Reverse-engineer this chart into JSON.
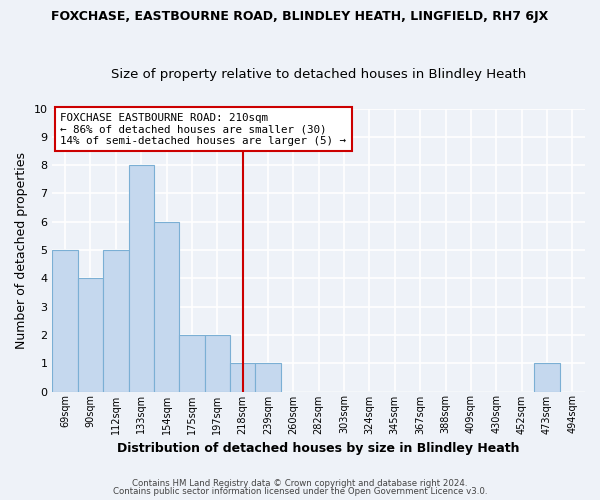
{
  "title_main": "FOXCHASE, EASTBOURNE ROAD, BLINDLEY HEATH, LINGFIELD, RH7 6JX",
  "title_sub": "Size of property relative to detached houses in Blindley Heath",
  "xlabel": "Distribution of detached houses by size in Blindley Heath",
  "ylabel": "Number of detached properties",
  "bin_labels": [
    "69sqm",
    "90sqm",
    "112sqm",
    "133sqm",
    "154sqm",
    "175sqm",
    "197sqm",
    "218sqm",
    "239sqm",
    "260sqm",
    "282sqm",
    "303sqm",
    "324sqm",
    "345sqm",
    "367sqm",
    "388sqm",
    "409sqm",
    "430sqm",
    "452sqm",
    "473sqm",
    "494sqm"
  ],
  "bar_heights": [
    5,
    4,
    5,
    8,
    6,
    2,
    2,
    1,
    1,
    0,
    0,
    0,
    0,
    0,
    0,
    0,
    0,
    0,
    0,
    1,
    0
  ],
  "bar_color": "#c5d8ee",
  "bar_edge_color": "#7bafd4",
  "vline_color": "#cc0000",
  "vline_x": 7,
  "annotation_text": "FOXCHASE EASTBOURNE ROAD: 210sqm\n← 86% of detached houses are smaller (30)\n14% of semi-detached houses are larger (5) →",
  "annotation_box_color": "#ffffff",
  "annotation_box_edge_color": "#cc0000",
  "ylim": [
    0,
    10
  ],
  "yticks": [
    0,
    1,
    2,
    3,
    4,
    5,
    6,
    7,
    8,
    9,
    10
  ],
  "footer_line1": "Contains HM Land Registry data © Crown copyright and database right 2024.",
  "footer_line2": "Contains public sector information licensed under the Open Government Licence v3.0.",
  "background_color": "#eef2f8",
  "grid_color": "#ffffff",
  "title_main_fontsize": 9,
  "title_sub_fontsize": 9.5,
  "annotation_fontsize": 7.8,
  "xlabel_fontsize": 9,
  "ylabel_fontsize": 9
}
